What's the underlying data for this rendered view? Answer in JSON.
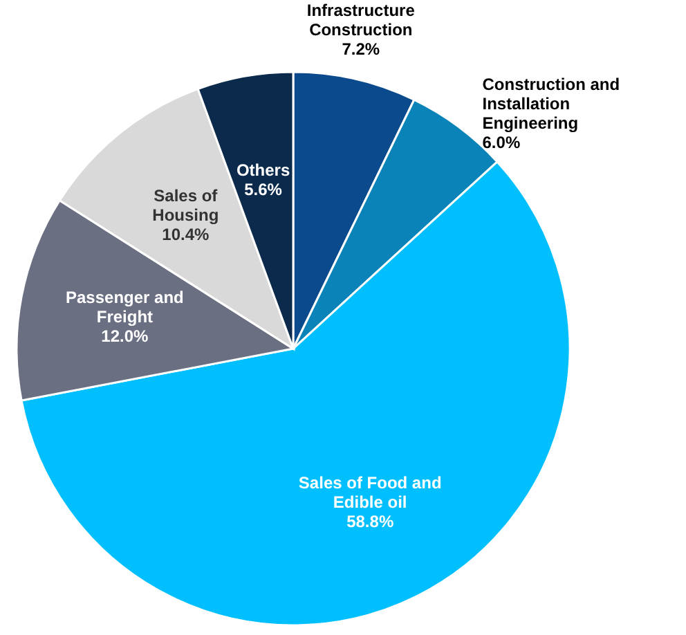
{
  "chart_data": {
    "type": "pie",
    "categories": [
      "Infrastructure Construction",
      "Construction and Installation Engineering",
      "Sales of Food and Edible oil",
      "Passenger and Freight",
      "Sales of Housing",
      "Others"
    ],
    "values": [
      7.2,
      6.0,
      58.8,
      12.0,
      10.4,
      5.6
    ],
    "value_labels": [
      "7.2%",
      "6.0%",
      "58.8%",
      "12.0%",
      "10.4%",
      "5.6%"
    ],
    "colors": [
      "#0b4a8c",
      "#0a84b8",
      "#00bfff",
      "#6b6f82",
      "#d9d9d9",
      "#0c2b4c"
    ]
  }
}
